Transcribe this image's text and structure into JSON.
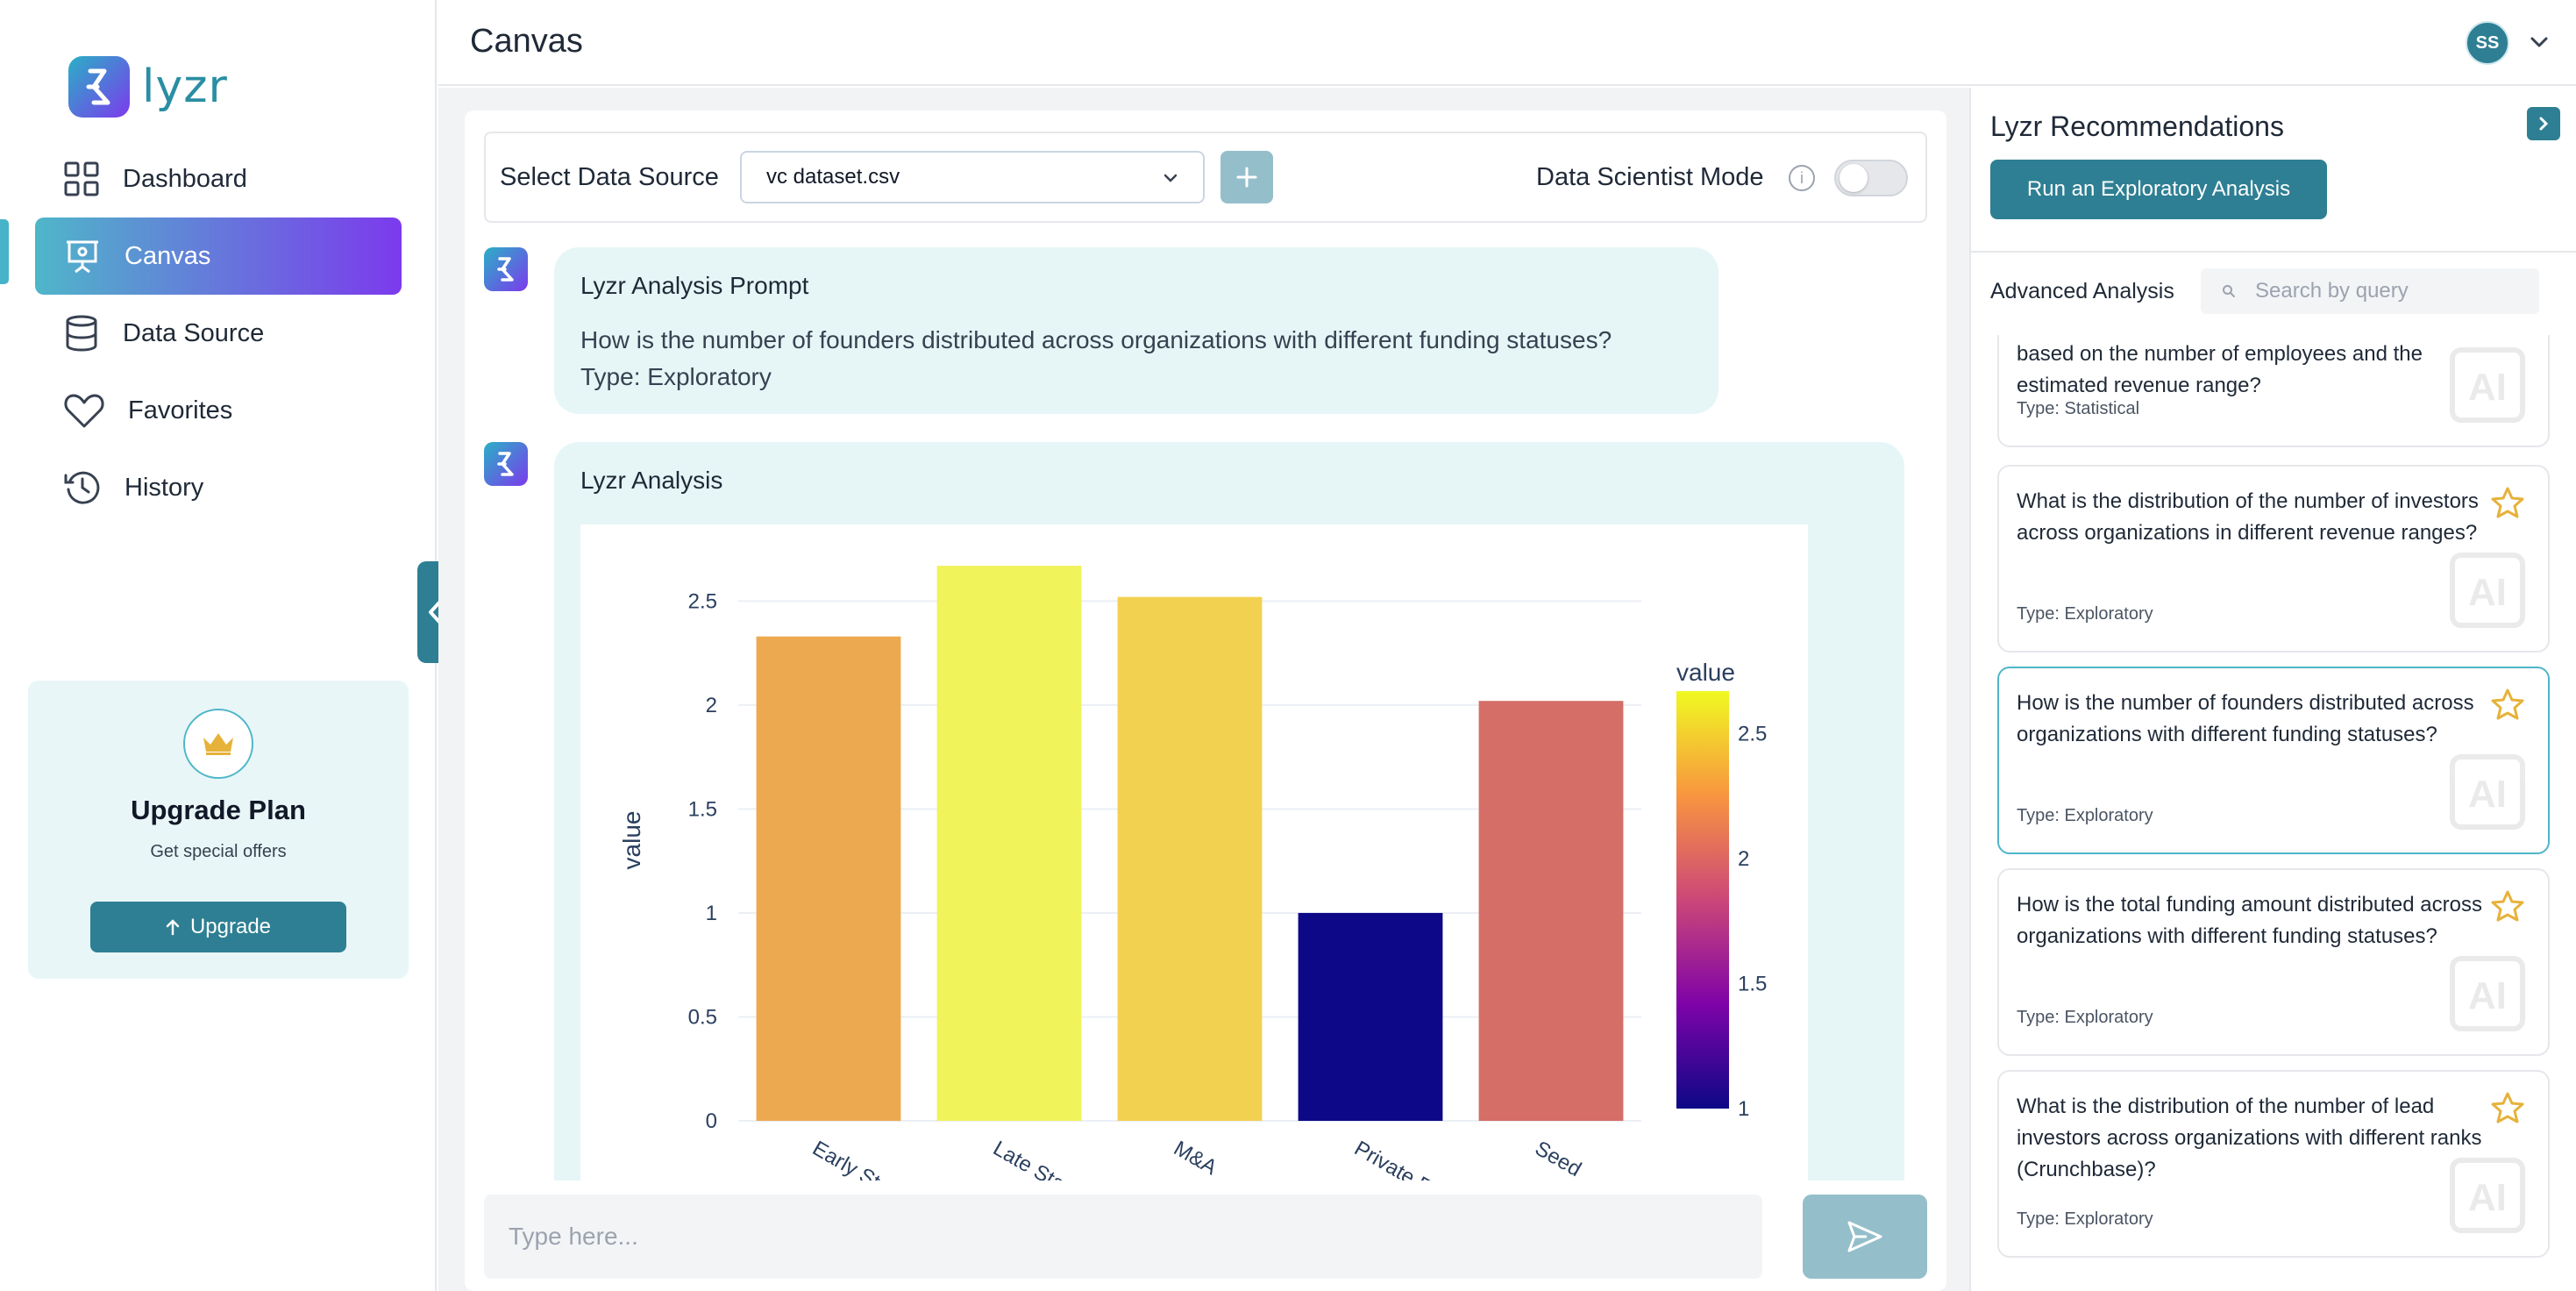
{
  "app": {
    "logo_text": "lyzr"
  },
  "sidebar": {
    "items": [
      {
        "label": "Dashboard",
        "icon": "grid-icon"
      },
      {
        "label": "Canvas",
        "icon": "presentation-icon",
        "active": true
      },
      {
        "label": "Data Source",
        "icon": "database-icon"
      },
      {
        "label": "Favorites",
        "icon": "heart-icon"
      },
      {
        "label": "History",
        "icon": "history-icon"
      }
    ],
    "upgrade": {
      "title": "Upgrade Plan",
      "subtitle": "Get special offers",
      "button_label": "Upgrade"
    }
  },
  "header": {
    "title": "Canvas",
    "avatar_initials": "SS"
  },
  "data_source": {
    "label": "Select Data Source",
    "selected": "vc dataset.csv",
    "mode_label": "Data Scientist Mode",
    "mode_on": false
  },
  "prompt": {
    "title": "Lyzr Analysis Prompt",
    "question": "How is the number of founders distributed across organizations with different funding statuses?",
    "type_line": "Type: Exploratory"
  },
  "analysis": {
    "title": "Lyzr Analysis"
  },
  "chart_data": {
    "type": "bar",
    "categories": [
      "Early Stage",
      "Late Stage",
      "M&A",
      "Private Equity",
      "Seed"
    ],
    "category_labels_visible": [
      "Early St",
      "Late Sta",
      "M&A",
      "Private E",
      "Seed"
    ],
    "values": [
      2.33,
      2.67,
      2.52,
      1.0,
      2.02
    ],
    "ylabel": "value",
    "ylim": [
      0,
      2.7
    ],
    "yticks": [
      "0",
      "0.5",
      "1",
      "1.5",
      "2",
      "2.5"
    ],
    "colorbar": {
      "title": "value",
      "ticks": [
        "1",
        "1.5",
        "2",
        "2.5"
      ],
      "range": [
        1,
        2.67
      ]
    },
    "colors": [
      "#eda94f",
      "#f0f35a",
      "#f3d150",
      "#0d0887",
      "#d46e66"
    ],
    "grid": true
  },
  "chat": {
    "placeholder": "Type here..."
  },
  "recommendations": {
    "title": "Lyzr Recommendations",
    "run_button": "Run an Exploratory Analysis",
    "advanced_label": "Advanced Analysis",
    "search_placeholder": "Search by query",
    "items": [
      {
        "text": "based on the number of employees and the estimated revenue range?",
        "type": "Type:  Statistical"
      },
      {
        "text": "What is the distribution of the number of investors across organizations in different revenue ranges?",
        "type": "Type:  Exploratory"
      },
      {
        "text": "How is the number of founders distributed across organizations with different funding statuses?",
        "type": "Type:  Exploratory"
      },
      {
        "text": "How is the total funding amount distributed across organizations with different funding statuses?",
        "type": "Type:  Exploratory"
      },
      {
        "text": "What is the distribution of the number of lead investors across organizations with different ranks (Crunchbase)?",
        "type": "Type:  Exploratory"
      }
    ]
  }
}
